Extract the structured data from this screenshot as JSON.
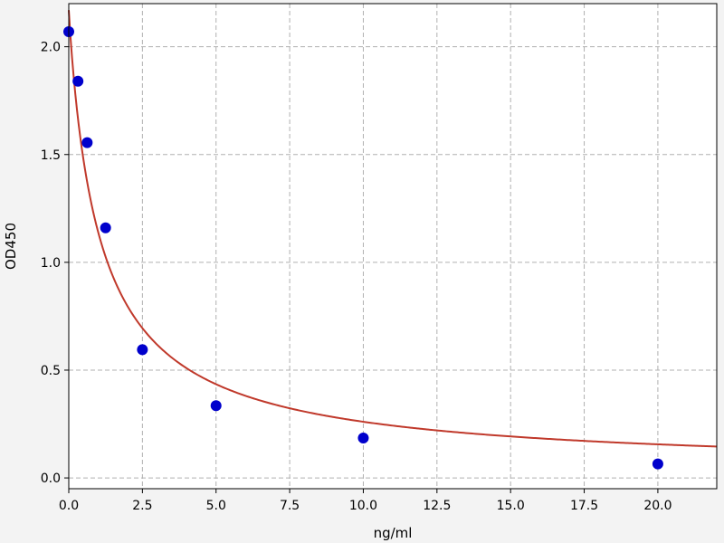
{
  "chart_data": {
    "type": "scatter",
    "xlabel": "ng/ml",
    "ylabel": "OD450",
    "xlim": [
      0,
      22
    ],
    "ylim": [
      -0.05,
      2.2
    ],
    "xticks": [
      0,
      2.5,
      5,
      7.5,
      10,
      12.5,
      15,
      17.5,
      20
    ],
    "xtick_labels": [
      "0.0",
      "2.5",
      "5.0",
      "7.5",
      "10.0",
      "12.5",
      "15.0",
      "17.5",
      "20.0"
    ],
    "yticks": [
      0,
      0.5,
      1,
      1.5,
      2
    ],
    "ytick_labels": [
      "0.0",
      "0.5",
      "1.0",
      "1.5",
      "2.0"
    ],
    "grid": true,
    "series": [
      {
        "kind": "points",
        "color": "#0000cc",
        "x": [
          0,
          0.3125,
          0.625,
          1.25,
          2.5,
          5,
          10,
          20
        ],
        "y": [
          2.07,
          1.84,
          1.555,
          1.16,
          0.595,
          0.335,
          0.185,
          0.065
        ]
      },
      {
        "kind": "fit-curve",
        "color": "#c0392b"
      }
    ]
  },
  "colors": {
    "background": "#f3f3f3",
    "plot_background": "#ffffff",
    "points": "#0000cc",
    "curve": "#c0392b"
  }
}
